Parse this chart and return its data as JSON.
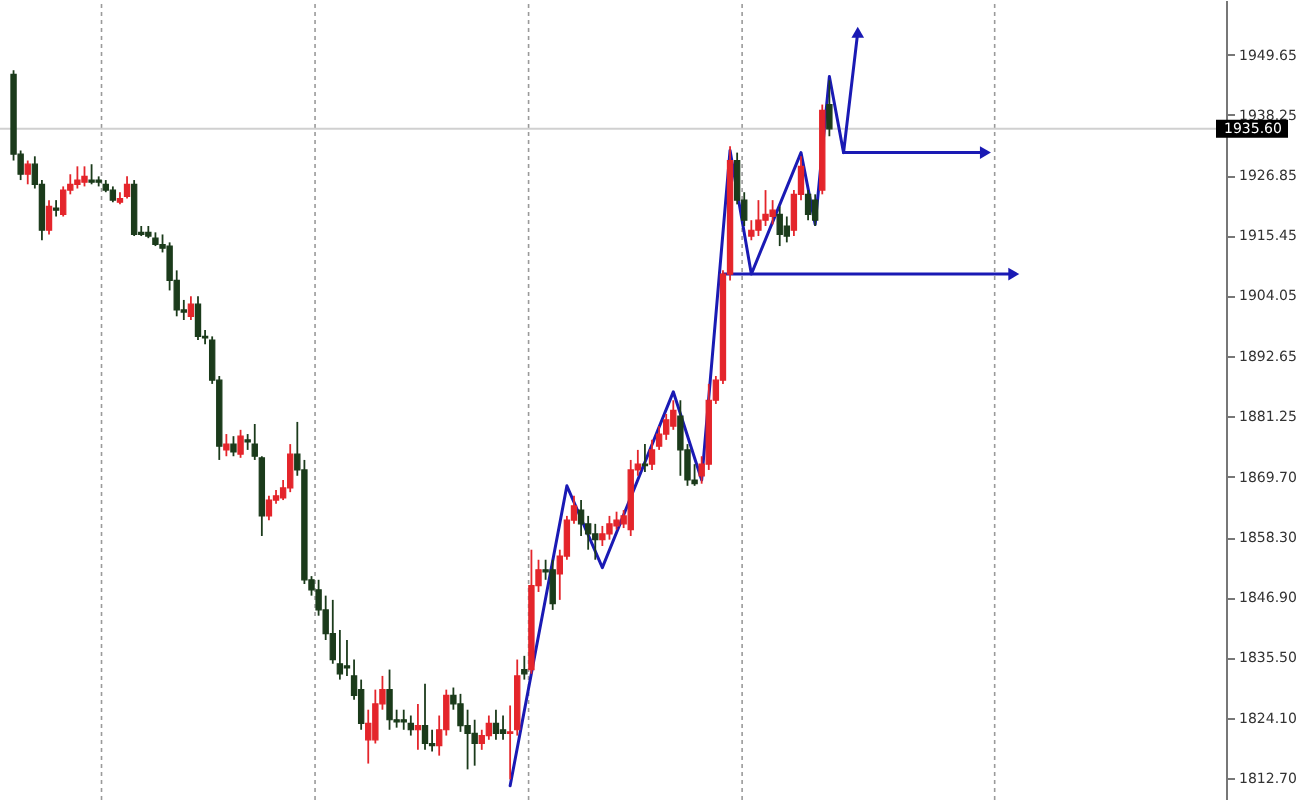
{
  "chart_data": {
    "type": "candlestick",
    "categories": [
      null,
      null,
      null,
      null,
      null,
      null,
      null,
      null,
      null,
      null,
      null,
      null,
      null,
      null,
      null,
      null,
      null,
      null,
      null,
      null,
      null,
      null,
      null,
      null,
      null,
      null,
      null,
      null,
      null,
      null,
      null,
      null,
      null,
      null,
      null,
      null,
      null,
      null,
      null,
      null,
      null,
      null,
      null,
      null,
      null,
      null,
      null,
      null,
      null,
      null,
      null,
      null,
      null,
      null,
      null,
      null,
      null,
      null,
      null,
      null,
      null,
      null,
      null,
      null,
      null,
      null,
      null,
      null,
      null,
      null,
      null,
      null,
      null,
      null,
      null,
      null,
      null,
      null,
      null,
      null,
      null,
      null,
      null,
      null,
      null,
      null,
      null,
      null,
      null,
      null,
      null,
      null,
      null,
      null,
      null,
      null,
      null,
      null,
      null,
      null,
      null,
      null,
      null,
      null,
      null,
      null,
      null,
      null,
      null,
      null,
      null,
      null,
      null,
      null,
      null,
      null,
      null,
      null,
      null,
      null,
      null,
      null,
      null,
      null,
      null,
      null,
      null,
      null,
      null,
      null,
      null,
      null,
      null,
      null,
      null,
      null,
      null,
      null,
      null,
      null,
      null,
      null,
      null,
      null,
      null,
      null,
      null,
      null,
      null,
      null,
      null,
      null,
      null,
      null,
      null,
      null,
      null,
      null,
      null,
      null,
      null,
      null,
      null,
      null,
      null,
      null,
      null,
      null,
      null,
      null
    ],
    "ohlc": [
      [
        1945.9,
        1946.7,
        1929.6,
        1930.8
      ],
      [
        1930.8,
        1931.5,
        1925.9,
        1927.0
      ],
      [
        1927.0,
        1929.6,
        1925.1,
        1928.9
      ],
      [
        1928.9,
        1930.4,
        1924.3,
        1925.1
      ],
      [
        1925.1,
        1925.9,
        1914.5,
        1916.4
      ],
      [
        1916.4,
        1922.1,
        1915.6,
        1920.9
      ],
      [
        1920.6,
        1922.1,
        1919.0,
        1920.2
      ],
      [
        1919.4,
        1924.7,
        1919.0,
        1924.0
      ],
      [
        1924.0,
        1927.0,
        1923.2,
        1925.1
      ],
      [
        1925.1,
        1928.5,
        1924.3,
        1925.9
      ],
      [
        1925.5,
        1928.5,
        1924.7,
        1926.6
      ],
      [
        1925.9,
        1928.9,
        1925.1,
        1925.5
      ],
      [
        1925.9,
        1926.6,
        1924.7,
        1925.5
      ],
      [
        1925.1,
        1925.9,
        1923.6,
        1924.0
      ],
      [
        1924.0,
        1924.7,
        1921.7,
        1922.1
      ],
      [
        1921.7,
        1923.6,
        1921.3,
        1922.4
      ],
      [
        1922.8,
        1926.6,
        1922.4,
        1925.1
      ],
      [
        1925.1,
        1925.9,
        1915.3,
        1915.6
      ],
      [
        1916.0,
        1917.2,
        1915.3,
        1915.6
      ],
      [
        1916.0,
        1917.2,
        1914.9,
        1915.3
      ],
      [
        1914.9,
        1916.0,
        1913.4,
        1913.7
      ],
      [
        1913.7,
        1915.6,
        1912.2,
        1913.0
      ],
      [
        1913.4,
        1914.1,
        1905.0,
        1906.9
      ],
      [
        1906.9,
        1908.8,
        1900.1,
        1901.3
      ],
      [
        1901.3,
        1903.2,
        1899.4,
        1900.9
      ],
      [
        1900.1,
        1903.9,
        1899.4,
        1902.4
      ],
      [
        1902.4,
        1903.9,
        1895.6,
        1896.3
      ],
      [
        1896.3,
        1897.5,
        1894.8,
        1896.0
      ],
      [
        1895.6,
        1896.3,
        1887.3,
        1888.0
      ],
      [
        1888.0,
        1888.8,
        1872.9,
        1875.5
      ],
      [
        1874.8,
        1877.8,
        1873.6,
        1875.9
      ],
      [
        1875.9,
        1877.4,
        1873.6,
        1874.4
      ],
      [
        1874.0,
        1878.6,
        1873.3,
        1877.4
      ],
      [
        1876.7,
        1877.8,
        1874.8,
        1876.3
      ],
      [
        1875.9,
        1879.7,
        1872.9,
        1873.6
      ],
      [
        1873.3,
        1873.6,
        1858.5,
        1862.3
      ],
      [
        1862.3,
        1866.1,
        1861.5,
        1865.3
      ],
      [
        1865.3,
        1867.2,
        1864.6,
        1866.1
      ],
      [
        1865.7,
        1869.1,
        1865.3,
        1867.6
      ],
      [
        1867.6,
        1875.9,
        1866.8,
        1874.0
      ],
      [
        1874.0,
        1880.1,
        1869.9,
        1871.0
      ],
      [
        1871.0,
        1872.9,
        1849.4,
        1850.2
      ],
      [
        1850.2,
        1850.9,
        1847.2,
        1848.3
      ],
      [
        1848.3,
        1850.2,
        1843.4,
        1844.5
      ],
      [
        1844.5,
        1847.2,
        1838.8,
        1840.0
      ],
      [
        1840.0,
        1846.4,
        1834.3,
        1835.1
      ],
      [
        1834.3,
        1840.7,
        1831.3,
        1832.4
      ],
      [
        1833.9,
        1838.8,
        1832.0,
        1833.5
      ],
      [
        1832.0,
        1835.1,
        1827.5,
        1828.3
      ],
      [
        1829.4,
        1831.3,
        1821.8,
        1823.0
      ],
      [
        1819.9,
        1825.6,
        1815.4,
        1823.0
      ],
      [
        1819.9,
        1829.4,
        1819.2,
        1826.7
      ],
      [
        1826.7,
        1832.0,
        1825.6,
        1829.4
      ],
      [
        1829.4,
        1833.2,
        1821.8,
        1823.7
      ],
      [
        1823.7,
        1825.6,
        1822.2,
        1823.3
      ],
      [
        1823.7,
        1825.6,
        1821.8,
        1823.3
      ],
      [
        1823.0,
        1824.5,
        1820.7,
        1821.8
      ],
      [
        1821.8,
        1826.7,
        1818.0,
        1822.6
      ],
      [
        1822.6,
        1830.5,
        1818.0,
        1819.2
      ],
      [
        1819.2,
        1821.8,
        1817.7,
        1818.8
      ],
      [
        1818.8,
        1824.5,
        1816.9,
        1821.8
      ],
      [
        1821.8,
        1829.4,
        1820.7,
        1828.3
      ],
      [
        1828.3,
        1829.8,
        1825.6,
        1826.7
      ],
      [
        1826.7,
        1828.6,
        1821.4,
        1822.6
      ],
      [
        1822.6,
        1825.6,
        1814.3,
        1821.1
      ],
      [
        1821.1,
        1823.7,
        1815.0,
        1819.2
      ],
      [
        1819.2,
        1821.8,
        1818.0,
        1820.7
      ],
      [
        1820.7,
        1824.5,
        1819.9,
        1823.0
      ],
      [
        1823.0,
        1825.6,
        1819.9,
        1821.1
      ],
      [
        1821.8,
        1824.5,
        1819.9,
        1821.1
      ],
      [
        1821.1,
        1826.4,
        1812.4,
        1821.4
      ],
      [
        1821.8,
        1835.1,
        1820.7,
        1832.0
      ],
      [
        1833.2,
        1835.8,
        1831.3,
        1832.4
      ],
      [
        1833.2,
        1855.9,
        1832.4,
        1849.1
      ],
      [
        1849.1,
        1854.0,
        1847.9,
        1852.1
      ],
      [
        1852.1,
        1854.0,
        1850.2,
        1851.7
      ],
      [
        1852.1,
        1854.0,
        1844.5,
        1845.7
      ],
      [
        1851.3,
        1855.9,
        1846.4,
        1854.7
      ],
      [
        1854.7,
        1862.3,
        1854.0,
        1861.5
      ],
      [
        1861.5,
        1866.1,
        1860.8,
        1864.2
      ],
      [
        1863.4,
        1865.3,
        1858.5,
        1860.8
      ],
      [
        1860.8,
        1862.3,
        1855.9,
        1858.9
      ],
      [
        1858.9,
        1860.8,
        1854.0,
        1857.8
      ],
      [
        1857.8,
        1860.4,
        1856.6,
        1858.9
      ],
      [
        1858.9,
        1862.3,
        1857.8,
        1860.8
      ],
      [
        1860.4,
        1863.1,
        1859.7,
        1861.5
      ],
      [
        1860.8,
        1863.4,
        1860.0,
        1862.3
      ],
      [
        1859.7,
        1872.9,
        1858.5,
        1871.0
      ],
      [
        1871.0,
        1874.8,
        1869.9,
        1872.1
      ],
      [
        1872.1,
        1875.9,
        1870.6,
        1871.8
      ],
      [
        1872.1,
        1876.7,
        1871.0,
        1874.8
      ],
      [
        1875.5,
        1879.3,
        1874.8,
        1877.8
      ],
      [
        1877.8,
        1881.6,
        1876.7,
        1880.5
      ],
      [
        1879.3,
        1884.2,
        1878.6,
        1882.3
      ],
      [
        1881.2,
        1884.2,
        1869.9,
        1874.8
      ],
      [
        1874.8,
        1875.9,
        1868.0,
        1869.1
      ],
      [
        1869.1,
        1872.1,
        1868.0,
        1868.4
      ],
      [
        1869.9,
        1873.6,
        1868.4,
        1872.1
      ],
      [
        1872.1,
        1887.3,
        1871.0,
        1884.2
      ],
      [
        1884.2,
        1888.8,
        1883.5,
        1888.0
      ],
      [
        1888.0,
        1908.8,
        1887.3,
        1908.1
      ],
      [
        1908.1,
        1932.3,
        1906.9,
        1929.6
      ],
      [
        1929.6,
        1931.1,
        1921.3,
        1922.1
      ],
      [
        1922.1,
        1923.6,
        1917.2,
        1918.3
      ],
      [
        1915.3,
        1918.3,
        1914.5,
        1916.4
      ],
      [
        1916.4,
        1922.1,
        1915.3,
        1918.3
      ],
      [
        1918.3,
        1924.0,
        1917.2,
        1919.4
      ],
      [
        1919.0,
        1922.1,
        1917.5,
        1920.2
      ],
      [
        1919.4,
        1920.9,
        1913.4,
        1915.6
      ],
      [
        1917.2,
        1919.0,
        1914.1,
        1915.3
      ],
      [
        1916.4,
        1924.0,
        1915.3,
        1923.2
      ],
      [
        1923.2,
        1930.4,
        1922.1,
        1928.5
      ],
      [
        1923.2,
        1924.0,
        1918.3,
        1919.4
      ],
      [
        1922.1,
        1923.2,
        1917.2,
        1918.3
      ],
      [
        1924.0,
        1940.2,
        1923.2,
        1939.1
      ],
      [
        1940.2,
        1944.8,
        1934.2,
        1935.6
      ],
      null,
      null,
      null,
      null,
      null,
      null,
      null,
      null,
      null,
      null,
      null,
      null,
      null,
      null,
      null,
      null,
      null,
      null,
      null,
      null,
      null,
      null,
      null,
      null,
      null,
      null,
      null,
      null,
      null,
      null,
      null,
      null,
      null,
      null,
      null,
      null,
      null,
      null,
      null,
      null,
      null,
      null,
      null,
      null,
      null,
      null,
      null,
      null,
      null,
      null,
      null,
      null,
      null,
      null
    ],
    "colors": [
      "#1b3b1b",
      "#1b3b1b",
      "#e4252b",
      "#1b3b1b",
      "#1b3b1b",
      "#e4252b",
      "#1b3b1b",
      "#e4252b",
      "#e4252b",
      "#e4252b",
      "#e4252b",
      "#1b3b1b",
      "#1b3b1b",
      "#1b3b1b",
      "#1b3b1b",
      "#e4252b",
      "#e4252b",
      "#1b3b1b",
      "#1b3b1b",
      "#1b3b1b",
      "#1b3b1b",
      "#1b3b1b",
      "#1b3b1b",
      "#1b3b1b",
      "#1b3b1b",
      "#e4252b",
      "#1b3b1b",
      "#1b3b1b",
      "#1b3b1b",
      "#1b3b1b",
      "#e4252b",
      "#1b3b1b",
      "#e4252b",
      "#1b3b1b",
      "#1b3b1b",
      "#1b3b1b",
      "#e4252b",
      "#e4252b",
      "#e4252b",
      "#e4252b",
      "#1b3b1b",
      "#1b3b1b",
      "#1b3b1b",
      "#1b3b1b",
      "#1b3b1b",
      "#1b3b1b",
      "#1b3b1b",
      "#1b3b1b",
      "#1b3b1b",
      "#1b3b1b",
      "#e4252b",
      "#e4252b",
      "#e4252b",
      "#1b3b1b",
      "#1b3b1b",
      "#1b3b1b",
      "#1b3b1b",
      "#e4252b",
      "#1b3b1b",
      "#1b3b1b",
      "#e4252b",
      "#e4252b",
      "#1b3b1b",
      "#1b3b1b",
      "#1b3b1b",
      "#1b3b1b",
      "#e4252b",
      "#e4252b",
      "#1b3b1b",
      "#1b3b1b",
      "#e4252b",
      "#e4252b",
      "#1b3b1b",
      "#e4252b",
      "#e4252b",
      "#1b3b1b",
      "#1b3b1b",
      "#e4252b",
      "#e4252b",
      "#e4252b",
      "#1b3b1b",
      "#1b3b1b",
      "#1b3b1b",
      "#e4252b",
      "#e4252b",
      "#e4252b",
      "#e4252b",
      "#e4252b",
      "#e4252b",
      "#1b3b1b",
      "#e4252b",
      "#e4252b",
      "#e4252b",
      "#e4252b",
      "#1b3b1b",
      "#1b3b1b",
      "#1b3b1b",
      "#e4252b",
      "#e4252b",
      "#e4252b",
      "#e4252b",
      "#e4252b",
      "#1b3b1b",
      "#1b3b1b",
      "#e4252b",
      "#e4252b",
      "#e4252b",
      "#e4252b",
      "#1b3b1b",
      "#1b3b1b",
      "#e4252b",
      "#e4252b",
      "#1b3b1b",
      "#1b3b1b",
      "#e4252b",
      "#1b3b1b",
      null,
      null,
      null,
      null,
      null,
      null,
      null,
      null,
      null,
      null,
      null,
      null,
      null,
      null,
      null,
      null,
      null,
      null,
      null,
      null,
      null,
      null,
      null,
      null,
      null,
      null,
      null,
      null,
      null,
      null,
      null,
      null,
      null,
      null,
      null,
      null,
      null,
      null,
      null,
      null,
      null,
      null,
      null,
      null,
      null,
      null,
      null,
      null,
      null,
      null,
      null,
      null,
      null,
      null
    ],
    "series": [
      {
        "type": "line",
        "color": "#1a1ab4",
        "values": [
          null,
          null,
          null,
          null,
          null,
          null,
          null,
          null,
          null,
          null,
          null,
          null,
          null,
          null,
          null,
          null,
          null,
          null,
          null,
          null,
          null,
          null,
          null,
          null,
          null,
          null,
          null,
          null,
          null,
          null,
          null,
          null,
          null,
          null,
          null,
          null,
          null,
          null,
          null,
          null,
          null,
          null,
          null,
          null,
          null,
          null,
          null,
          null,
          null,
          null,
          null,
          null,
          null,
          null,
          null,
          null,
          null,
          null,
          null,
          null,
          null,
          null,
          null,
          null,
          null,
          null,
          null,
          null,
          null,
          null,
          1811.2,
          null,
          null,
          null,
          null,
          null,
          null,
          null,
          1868.0,
          null,
          null,
          null,
          null,
          1852.5,
          null,
          null,
          null,
          null,
          null,
          null,
          null,
          null,
          null,
          1885.8,
          null,
          null,
          null,
          1869.1,
          null,
          null,
          null,
          1931.5,
          null,
          null,
          1908.1,
          null,
          null,
          null,
          null,
          null,
          null,
          1931.1,
          null,
          1917.5,
          null,
          1945.5,
          null,
          1931.1,
          null,
          1953.9,
          null,
          null,
          null,
          null,
          null,
          null,
          null,
          null,
          null,
          null,
          null,
          null,
          null,
          null,
          null,
          null,
          null,
          null,
          null,
          null,
          null,
          null,
          null,
          null,
          null,
          null,
          null,
          null,
          null,
          null,
          null,
          null,
          null,
          null,
          null,
          null,
          null,
          null,
          null,
          null,
          null,
          null,
          null,
          null,
          null,
          null,
          null,
          null,
          null,
          null
        ]
      },
      {
        "type": "line",
        "color": "#1a1ab4",
        "values": [
          null,
          null,
          null,
          null,
          null,
          null,
          null,
          null,
          null,
          null,
          null,
          null,
          null,
          null,
          null,
          null,
          null,
          null,
          null,
          null,
          null,
          null,
          null,
          null,
          null,
          null,
          null,
          null,
          null,
          null,
          null,
          null,
          null,
          null,
          null,
          null,
          null,
          null,
          null,
          null,
          null,
          null,
          null,
          null,
          null,
          null,
          null,
          null,
          null,
          null,
          null,
          null,
          null,
          null,
          null,
          null,
          null,
          null,
          null,
          null,
          null,
          null,
          null,
          null,
          null,
          null,
          null,
          null,
          null,
          null,
          null,
          null,
          null,
          null,
          null,
          null,
          null,
          null,
          null,
          null,
          null,
          null,
          null,
          null,
          null,
          null,
          null,
          null,
          null,
          null,
          null,
          null,
          null,
          null,
          null,
          null,
          null,
          null,
          null,
          null,
          null,
          null,
          null,
          null,
          null,
          null,
          null,
          null,
          null,
          null,
          null,
          null,
          null,
          null,
          null,
          null,
          null,
          1931.1,
          null,
          null,
          null,
          null,
          null,
          null,
          null,
          null,
          null,
          null,
          null,
          null,
          null,
          null,
          null,
          null,
          null,
          null,
          null,
          1931.1,
          null,
          null,
          null,
          null,
          null,
          null,
          null,
          null,
          null,
          null,
          null,
          null,
          null,
          null,
          null,
          null,
          null,
          null,
          null,
          null,
          null,
          null,
          null,
          null,
          null,
          null,
          null,
          null,
          null,
          null,
          null,
          null
        ]
      },
      {
        "type": "line",
        "color": "#1a1ab4",
        "values": [
          null,
          null,
          null,
          null,
          null,
          null,
          null,
          null,
          null,
          null,
          null,
          null,
          null,
          null,
          null,
          null,
          null,
          null,
          null,
          null,
          null,
          null,
          null,
          null,
          null,
          null,
          null,
          null,
          null,
          null,
          null,
          null,
          null,
          null,
          null,
          null,
          null,
          null,
          null,
          null,
          null,
          null,
          null,
          null,
          null,
          null,
          null,
          null,
          null,
          null,
          null,
          null,
          null,
          null,
          null,
          null,
          null,
          null,
          null,
          null,
          null,
          null,
          null,
          null,
          null,
          null,
          null,
          null,
          null,
          null,
          null,
          null,
          null,
          null,
          null,
          null,
          null,
          null,
          null,
          null,
          null,
          null,
          null,
          null,
          null,
          null,
          null,
          null,
          null,
          null,
          null,
          null,
          null,
          null,
          null,
          null,
          null,
          null,
          null,
          null,
          1908.1,
          null,
          null,
          null,
          null,
          null,
          null,
          null,
          null,
          null,
          null,
          null,
          null,
          null,
          null,
          null,
          null,
          null,
          null,
          null,
          null,
          null,
          null,
          null,
          null,
          null,
          null,
          null,
          null,
          null,
          null,
          null,
          null,
          null,
          null,
          null,
          null,
          null,
          null,
          null,
          null,
          1908.1,
          null,
          null,
          null,
          null,
          null,
          null,
          null,
          null,
          null,
          null,
          null,
          null,
          null,
          null,
          null,
          null,
          null,
          null,
          null,
          null,
          null,
          null,
          null,
          null,
          null,
          null,
          null,
          null
        ]
      }
    ],
    "ylim": [
      1808.5,
      1960
    ],
    "yticks": [
      {
        "value": 1812.7,
        "label": "1812.70"
      },
      {
        "value": 1824.1,
        "label": "1824.10"
      },
      {
        "value": 1835.5,
        "label": "1835.50"
      },
      {
        "value": 1846.9,
        "label": "1846.90"
      },
      {
        "value": 1858.3,
        "label": "1858.30"
      },
      {
        "value": 1869.7,
        "label": "1869.70"
      },
      {
        "value": 1881.25,
        "label": "1881.25"
      },
      {
        "value": 1892.65,
        "label": "1892.65"
      },
      {
        "value": 1904.05,
        "label": "1904.05"
      },
      {
        "value": 1915.45,
        "label": "1915.45"
      },
      {
        "value": 1926.85,
        "label": "1926.85"
      },
      {
        "value": 1938.25,
        "label": "1938.25"
      },
      {
        "value": 1949.65,
        "label": "1949.65"
      }
    ],
    "ref_lines": [
      {
        "axis": "y",
        "value": 1935.6,
        "label": "1935.60",
        "color": "#d0d0d0"
      }
    ]
  }
}
